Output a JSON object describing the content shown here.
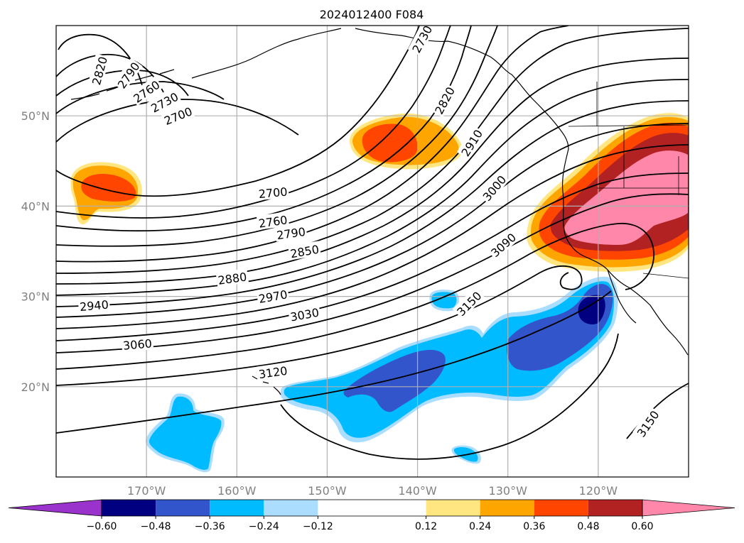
{
  "title": "2024012400 F084",
  "lat_labels": [
    {
      "text": "50°N",
      "lat": 50
    },
    {
      "text": "40°N",
      "lat": 40
    },
    {
      "text": "30°N",
      "lat": 30
    },
    {
      "text": "20°N",
      "lat": 20
    }
  ],
  "lon_labels": [
    {
      "text": "170°W",
      "lon": -170
    },
    {
      "text": "160°W",
      "lon": -160
    },
    {
      "text": "150°W",
      "lon": -150
    },
    {
      "text": "140°W",
      "lon": -140
    },
    {
      "text": "130°W",
      "lon": -130
    },
    {
      "text": "120°W",
      "lon": -120
    }
  ],
  "map_extent": {
    "lon_min": -180,
    "lon_max": -110,
    "lat_min": 10,
    "lat_max": 60
  },
  "contour_labels": [
    {
      "text": "2820",
      "lon": -175.2,
      "lat": 55.0,
      "angle": -75
    },
    {
      "text": "2790",
      "lon": -172.0,
      "lat": 54.5,
      "angle": -55
    },
    {
      "text": "2760",
      "lon": -170.0,
      "lat": 52.7,
      "angle": -35
    },
    {
      "text": "2730",
      "lon": -168.0,
      "lat": 51.5,
      "angle": -28
    },
    {
      "text": "2700",
      "lon": -166.5,
      "lat": 50.0,
      "angle": -22
    },
    {
      "text": "2730",
      "lon": -139.5,
      "lat": 58.5,
      "angle": -62
    },
    {
      "text": "2820",
      "lon": -137.0,
      "lat": 51.7,
      "angle": -62
    },
    {
      "text": "2910",
      "lon": -134.0,
      "lat": 47.0,
      "angle": -58
    },
    {
      "text": "3000",
      "lon": -131.5,
      "lat": 42.0,
      "angle": -50
    },
    {
      "text": "3090",
      "lon": -130.5,
      "lat": 35.7,
      "angle": -42
    },
    {
      "text": "3150",
      "lon": -134.3,
      "lat": 29.2,
      "angle": -45
    },
    {
      "text": "3150",
      "lon": -114.5,
      "lat": 15.9,
      "angle": -55
    },
    {
      "text": "2700",
      "lon": -156.0,
      "lat": 41.5,
      "angle": -5
    },
    {
      "text": "2760",
      "lon": -156.0,
      "lat": 38.3,
      "angle": -8
    },
    {
      "text": "2790",
      "lon": -154.0,
      "lat": 37.0,
      "angle": -8
    },
    {
      "text": "2850",
      "lon": -152.5,
      "lat": 35.0,
      "angle": -10
    },
    {
      "text": "2880",
      "lon": -160.5,
      "lat": 32.0,
      "angle": -8
    },
    {
      "text": "2940",
      "lon": -175.8,
      "lat": 29.0,
      "angle": -5
    },
    {
      "text": "2970",
      "lon": -156.0,
      "lat": 30.0,
      "angle": -10
    },
    {
      "text": "3030",
      "lon": -152.5,
      "lat": 28.0,
      "angle": -10
    },
    {
      "text": "3060",
      "lon": -171.0,
      "lat": 24.7,
      "angle": -5
    },
    {
      "text": "3120",
      "lon": -156.0,
      "lat": 21.6,
      "angle": -8
    }
  ],
  "colorbar": {
    "colors": [
      "#9933cc",
      "#000080",
      "#3355cc",
      "#00bbff",
      "#aaddff",
      "#ffffff",
      "#ffe680",
      "#ffa500",
      "#ff4500",
      "#b22222",
      "#ff88aa",
      "#ff88aa"
    ],
    "ticks": [
      {
        "value": -0.6,
        "text": "−0.60"
      },
      {
        "value": -0.48,
        "text": "−0.48"
      },
      {
        "value": -0.36,
        "text": "−0.36"
      },
      {
        "value": -0.24,
        "text": "−0.24"
      },
      {
        "value": -0.12,
        "text": "−0.12"
      },
      {
        "value": 0.12,
        "text": "0.12"
      },
      {
        "value": 0.24,
        "text": "0.24"
      },
      {
        "value": 0.36,
        "text": "0.36"
      },
      {
        "value": 0.48,
        "text": "0.48"
      },
      {
        "value": 0.6,
        "text": "0.60"
      }
    ]
  },
  "colors": {
    "neg_light": "#aaddff",
    "neg_mid": "#00bbff",
    "neg_strong": "#3355cc",
    "neg_max": "#000080",
    "neg_extreme": "#9933cc",
    "pos_light": "#ffe680",
    "pos_mid": "#ffa500",
    "pos_strong": "#ff4500",
    "pos_high": "#b22222",
    "pos_max": "#ff88aa",
    "grid": "#b0b0b0",
    "contour": "#000000"
  }
}
